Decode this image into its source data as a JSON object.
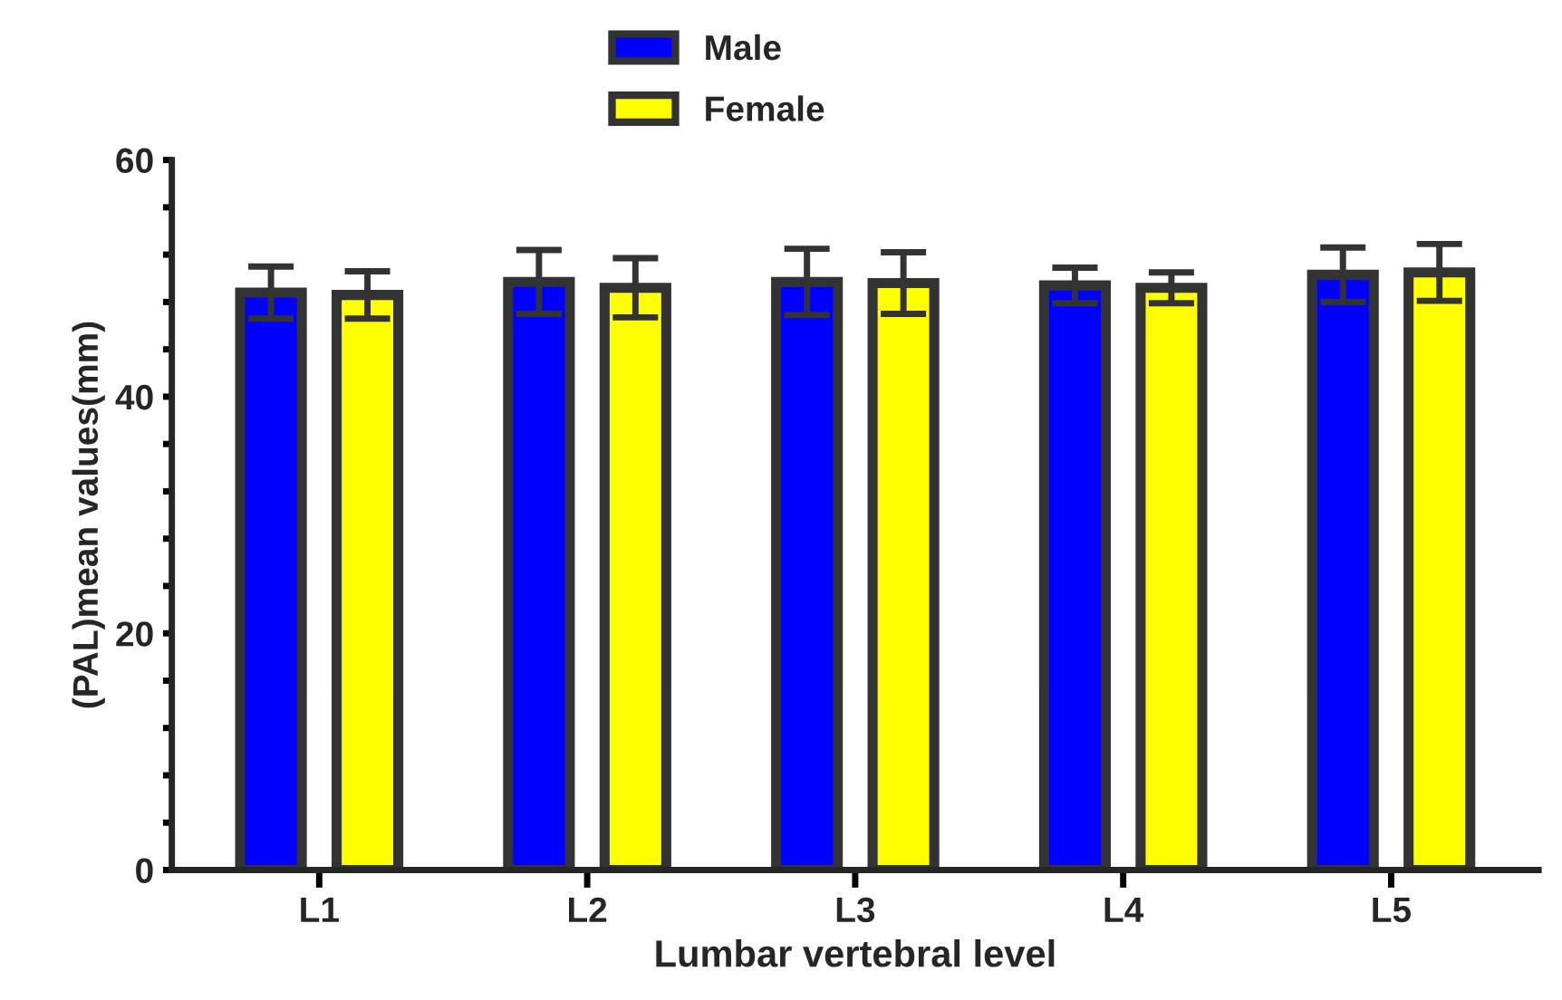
{
  "chart_data": {
    "type": "bar",
    "xlabel": "Lumbar vertebral level",
    "ylabel": "(PAL)mean values(mm)",
    "categories": [
      "L1",
      "L2",
      "L3",
      "L4",
      "L5"
    ],
    "series": [
      {
        "name": "Male",
        "color": "#0000ff",
        "values": [
          48.8,
          49.7,
          49.7,
          49.4,
          50.3
        ],
        "errors": [
          2.2,
          2.7,
          2.8,
          1.5,
          2.3
        ]
      },
      {
        "name": "Female",
        "color": "#ffff00",
        "values": [
          48.6,
          49.2,
          49.6,
          49.2,
          50.5
        ],
        "errors": [
          2.0,
          2.5,
          2.6,
          1.3,
          2.4
        ]
      }
    ],
    "ylim": [
      0,
      60
    ],
    "yticks": [
      0,
      {
        "value": 4,
        "label": null
      },
      {
        "value": 8,
        "label": null
      },
      {
        "value": 12,
        "label": null
      },
      {
        "value": 16,
        "label": null
      },
      20,
      {
        "value": 24,
        "label": null
      },
      {
        "value": 28,
        "label": null
      },
      {
        "value": 32,
        "label": null
      },
      {
        "value": 36,
        "label": null
      },
      40,
      {
        "value": 44,
        "label": null
      },
      {
        "value": 48,
        "label": null
      },
      {
        "value": 52,
        "label": null
      },
      {
        "value": 56,
        "label": null
      },
      60
    ],
    "grid": false,
    "legend": "top"
  }
}
